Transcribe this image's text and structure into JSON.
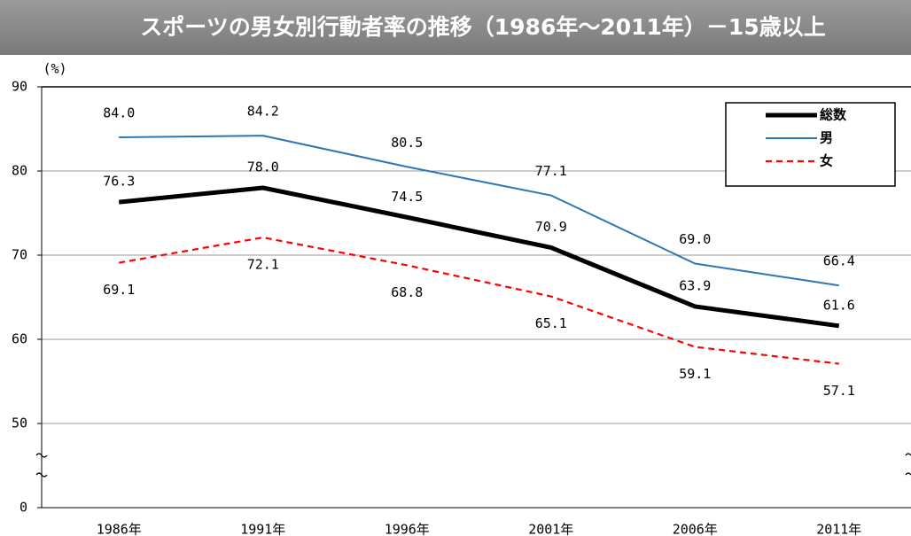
{
  "chart_data": {
    "type": "line",
    "title": "スポーツの男女別行動者率の推移（1986年～2011年）－15歳以上",
    "y_label": "(%)",
    "categories": [
      "1986年",
      "1991年",
      "1996年",
      "2001年",
      "2006年",
      "2011年"
    ],
    "series": [
      {
        "name": "総数",
        "color": "#000000",
        "values": [
          76.3,
          78,
          74.5,
          70.9,
          63.9,
          61.6
        ],
        "value_labels": [
          "76.3",
          "78.0",
          "74.5",
          "70.9",
          "63.9",
          "61.6"
        ]
      },
      {
        "name": "男",
        "color": "#2e75b6",
        "values": [
          84,
          84.2,
          80.5,
          77.1,
          69,
          66.4
        ],
        "value_labels": [
          "84.0",
          "84.2",
          "80.5",
          "77.1",
          "69.0",
          "66.4"
        ]
      },
      {
        "name": "女",
        "color": "#ff0000",
        "values": [
          69.1,
          72.1,
          68.8,
          65.1,
          59.1,
          57.1
        ],
        "value_labels": [
          "69.1",
          "72.1",
          "68.8",
          "65.1",
          "59.1",
          "57.1"
        ]
      }
    ],
    "ylim": [
      0,
      90
    ],
    "yticks": [
      0,
      50,
      60,
      70,
      80,
      90
    ],
    "grid": true,
    "legend": "top-right"
  }
}
